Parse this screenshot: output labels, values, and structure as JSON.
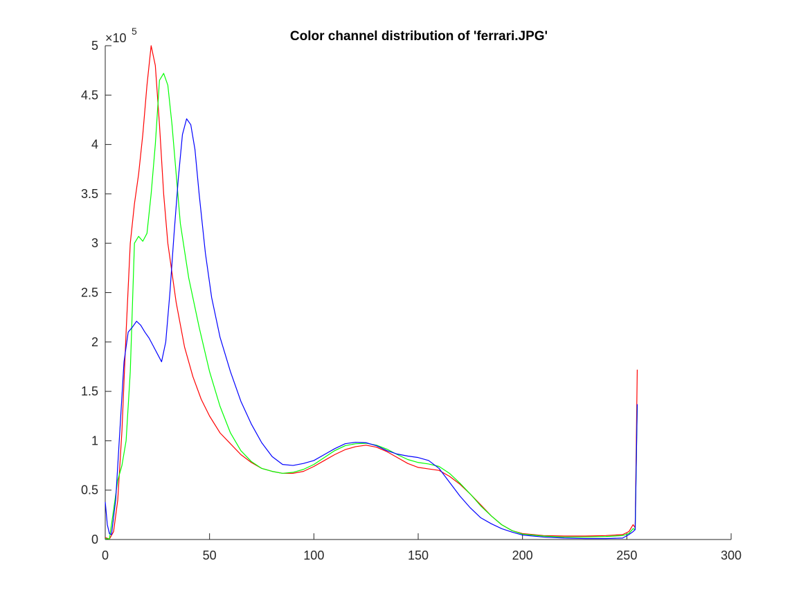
{
  "chart_data": {
    "type": "line",
    "title": "Color channel distribution of 'ferrari.JPG'",
    "xlabel": "",
    "ylabel": "",
    "xlim": [
      0,
      300
    ],
    "ylim": [
      0,
      500000
    ],
    "x_ticks": [
      0,
      50,
      100,
      150,
      200,
      250,
      300
    ],
    "x_tick_labels": [
      "0",
      "50",
      "100",
      "150",
      "200",
      "250",
      "300"
    ],
    "y_ticks": [
      0,
      50000,
      100000,
      150000,
      200000,
      250000,
      300000,
      350000,
      400000,
      450000,
      500000
    ],
    "y_tick_labels": [
      "0",
      "0.5",
      "1",
      "1.5",
      "2",
      "2.5",
      "3",
      "3.5",
      "4",
      "4.5",
      "5"
    ],
    "y_exponent_label": {
      "base": "×10",
      "exponent": "5"
    },
    "grid": false,
    "legend": "none",
    "series": [
      {
        "color": "#ff0000",
        "points": [
          [
            0,
            2000
          ],
          [
            2,
            500
          ],
          [
            4,
            8000
          ],
          [
            6,
            40000
          ],
          [
            8,
            110000
          ],
          [
            10,
            210000
          ],
          [
            12,
            300000
          ],
          [
            14,
            340000
          ],
          [
            16,
            370000
          ],
          [
            18,
            410000
          ],
          [
            20,
            460000
          ],
          [
            22,
            500000
          ],
          [
            24,
            480000
          ],
          [
            26,
            420000
          ],
          [
            28,
            350000
          ],
          [
            30,
            300000
          ],
          [
            34,
            240000
          ],
          [
            38,
            195000
          ],
          [
            42,
            165000
          ],
          [
            46,
            142000
          ],
          [
            50,
            125000
          ],
          [
            55,
            108000
          ],
          [
            60,
            97000
          ],
          [
            65,
            86000
          ],
          [
            70,
            78000
          ],
          [
            75,
            72000
          ],
          [
            80,
            69000
          ],
          [
            85,
            67000
          ],
          [
            90,
            67000
          ],
          [
            95,
            69000
          ],
          [
            100,
            74000
          ],
          [
            105,
            80000
          ],
          [
            110,
            86000
          ],
          [
            115,
            91000
          ],
          [
            120,
            94000
          ],
          [
            125,
            95500
          ],
          [
            130,
            93500
          ],
          [
            135,
            89000
          ],
          [
            140,
            83000
          ],
          [
            145,
            77000
          ],
          [
            150,
            73000
          ],
          [
            155,
            71500
          ],
          [
            160,
            70000
          ],
          [
            165,
            64000
          ],
          [
            170,
            56000
          ],
          [
            175,
            46000
          ],
          [
            180,
            35000
          ],
          [
            185,
            24000
          ],
          [
            190,
            15000
          ],
          [
            195,
            9000
          ],
          [
            200,
            6000
          ],
          [
            210,
            4000
          ],
          [
            220,
            3500
          ],
          [
            230,
            3500
          ],
          [
            240,
            4000
          ],
          [
            248,
            5000
          ],
          [
            251,
            8000
          ],
          [
            253,
            15000
          ],
          [
            254,
            12000
          ],
          [
            255,
            172000
          ]
        ]
      },
      {
        "color": "#00ff00",
        "points": [
          [
            0,
            1000
          ],
          [
            2,
            500
          ],
          [
            4,
            30000
          ],
          [
            6,
            60000
          ],
          [
            8,
            75000
          ],
          [
            10,
            100000
          ],
          [
            12,
            170000
          ],
          [
            14,
            300000
          ],
          [
            16,
            307000
          ],
          [
            18,
            302000
          ],
          [
            20,
            310000
          ],
          [
            22,
            350000
          ],
          [
            24,
            400000
          ],
          [
            26,
            465000
          ],
          [
            28,
            472000
          ],
          [
            30,
            460000
          ],
          [
            32,
            420000
          ],
          [
            34,
            370000
          ],
          [
            36,
            320000
          ],
          [
            40,
            265000
          ],
          [
            45,
            215000
          ],
          [
            50,
            170000
          ],
          [
            55,
            135000
          ],
          [
            60,
            108000
          ],
          [
            65,
            90000
          ],
          [
            70,
            79000
          ],
          [
            75,
            72000
          ],
          [
            80,
            69000
          ],
          [
            85,
            67000
          ],
          [
            90,
            68000
          ],
          [
            95,
            71000
          ],
          [
            100,
            76000
          ],
          [
            105,
            83000
          ],
          [
            110,
            90000
          ],
          [
            115,
            95000
          ],
          [
            120,
            97000
          ],
          [
            125,
            97500
          ],
          [
            130,
            95500
          ],
          [
            135,
            91500
          ],
          [
            140,
            86000
          ],
          [
            145,
            81000
          ],
          [
            150,
            78000
          ],
          [
            155,
            76500
          ],
          [
            160,
            74000
          ],
          [
            165,
            67000
          ],
          [
            170,
            57000
          ],
          [
            175,
            46000
          ],
          [
            180,
            34000
          ],
          [
            185,
            24000
          ],
          [
            190,
            15000
          ],
          [
            195,
            9000
          ],
          [
            200,
            5500
          ],
          [
            210,
            3500
          ],
          [
            220,
            2500
          ],
          [
            230,
            2500
          ],
          [
            240,
            3000
          ],
          [
            248,
            4000
          ],
          [
            251,
            6000
          ],
          [
            253,
            11000
          ],
          [
            254,
            10000
          ],
          [
            255,
            135000
          ]
        ]
      },
      {
        "color": "#0000ff",
        "points": [
          [
            0,
            38000
          ],
          [
            1,
            15000
          ],
          [
            2,
            6000
          ],
          [
            3,
            5000
          ],
          [
            5,
            40000
          ],
          [
            7,
            110000
          ],
          [
            9,
            180000
          ],
          [
            11,
            210000
          ],
          [
            13,
            215000
          ],
          [
            15,
            221000
          ],
          [
            17,
            217000
          ],
          [
            19,
            210000
          ],
          [
            21,
            204000
          ],
          [
            23,
            196000
          ],
          [
            25,
            188000
          ],
          [
            27,
            180000
          ],
          [
            29,
            200000
          ],
          [
            31,
            250000
          ],
          [
            33,
            310000
          ],
          [
            35,
            365000
          ],
          [
            37,
            410000
          ],
          [
            39,
            426000
          ],
          [
            41,
            420000
          ],
          [
            43,
            395000
          ],
          [
            45,
            350000
          ],
          [
            48,
            290000
          ],
          [
            51,
            245000
          ],
          [
            55,
            205000
          ],
          [
            60,
            170000
          ],
          [
            65,
            140000
          ],
          [
            70,
            117000
          ],
          [
            75,
            98000
          ],
          [
            80,
            84000
          ],
          [
            85,
            76000
          ],
          [
            90,
            75000
          ],
          [
            95,
            77000
          ],
          [
            100,
            80000
          ],
          [
            105,
            86000
          ],
          [
            110,
            92000
          ],
          [
            115,
            97000
          ],
          [
            120,
            98500
          ],
          [
            125,
            98000
          ],
          [
            130,
            95000
          ],
          [
            135,
            90000
          ],
          [
            140,
            86500
          ],
          [
            145,
            84500
          ],
          [
            150,
            83000
          ],
          [
            155,
            80000
          ],
          [
            160,
            72000
          ],
          [
            165,
            58000
          ],
          [
            170,
            44000
          ],
          [
            175,
            32000
          ],
          [
            180,
            22000
          ],
          [
            185,
            16000
          ],
          [
            190,
            11000
          ],
          [
            195,
            7500
          ],
          [
            200,
            4500
          ],
          [
            210,
            2500
          ],
          [
            220,
            1500
          ],
          [
            230,
            1000
          ],
          [
            240,
            1000
          ],
          [
            248,
            1500
          ],
          [
            251,
            5000
          ],
          [
            253,
            8000
          ],
          [
            254,
            10000
          ],
          [
            255,
            137000
          ]
        ]
      }
    ]
  }
}
